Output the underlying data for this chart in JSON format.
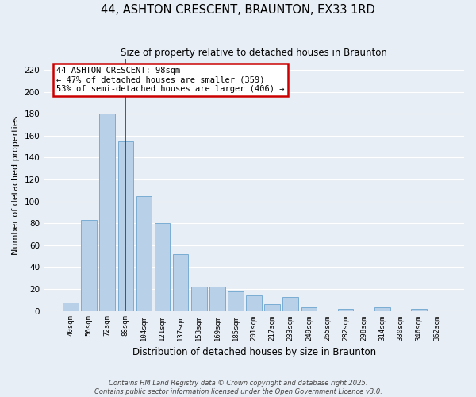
{
  "title": "44, ASHTON CRESCENT, BRAUNTON, EX33 1RD",
  "subtitle": "Size of property relative to detached houses in Braunton",
  "xlabel": "Distribution of detached houses by size in Braunton",
  "ylabel": "Number of detached properties",
  "categories": [
    "40sqm",
    "56sqm",
    "72sqm",
    "88sqm",
    "104sqm",
    "121sqm",
    "137sqm",
    "153sqm",
    "169sqm",
    "185sqm",
    "201sqm",
    "217sqm",
    "233sqm",
    "249sqm",
    "265sqm",
    "282sqm",
    "298sqm",
    "314sqm",
    "330sqm",
    "346sqm",
    "362sqm"
  ],
  "values": [
    8,
    83,
    180,
    155,
    105,
    80,
    52,
    22,
    22,
    18,
    14,
    6,
    13,
    3,
    0,
    2,
    0,
    3,
    0,
    2,
    0
  ],
  "bar_color": "#b8d0e8",
  "bar_edge_color": "#7aadd4",
  "ylim": [
    0,
    230
  ],
  "yticks": [
    0,
    20,
    40,
    60,
    80,
    100,
    120,
    140,
    160,
    180,
    200,
    220
  ],
  "annotation_title": "44 ASHTON CRESCENT: 98sqm",
  "annotation_line1": "← 47% of detached houses are smaller (359)",
  "annotation_line2": "53% of semi-detached houses are larger (406) →",
  "property_bar_index": 3,
  "vline_color": "#cc0000",
  "background_color": "#e8eef5",
  "grid_color": "#ffffff",
  "footer_line1": "Contains HM Land Registry data © Crown copyright and database right 2025.",
  "footer_line2": "Contains public sector information licensed under the Open Government Licence v3.0."
}
